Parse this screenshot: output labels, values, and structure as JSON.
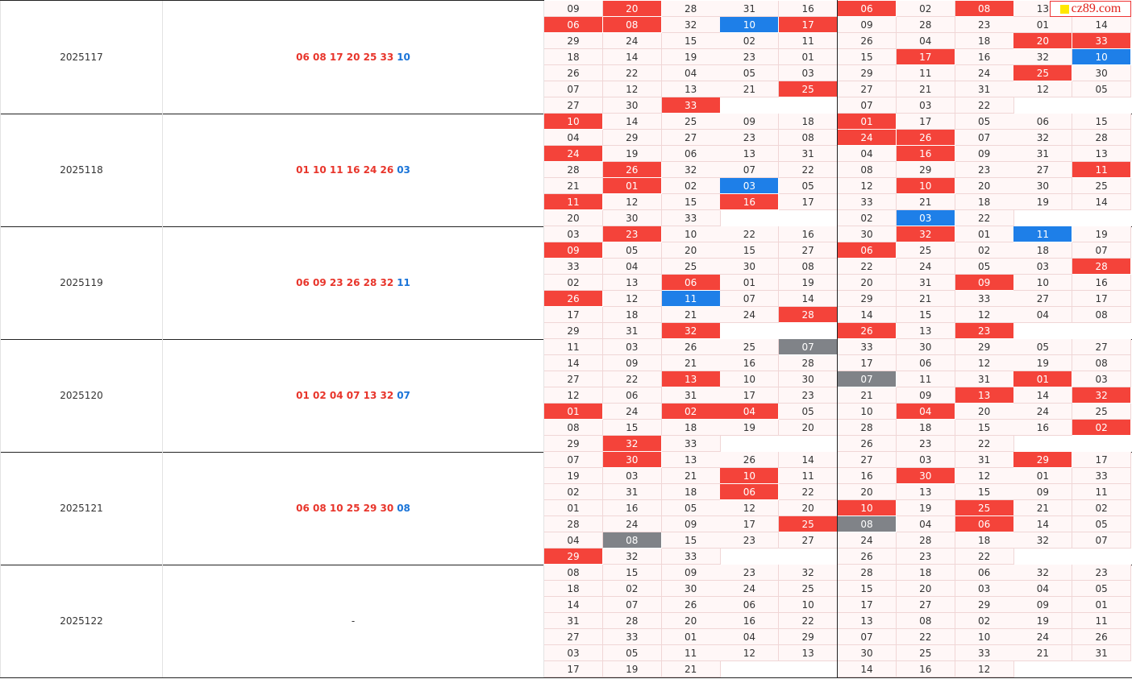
{
  "watermark": "cz89.com",
  "periods": [
    {
      "issue": "2025117",
      "reds": "06 08 17 20 25 33",
      "blue": "10",
      "left": [
        [
          "09",
          "20",
          "28",
          "31",
          "16"
        ],
        [
          "06",
          "08",
          "32",
          "10",
          "17"
        ],
        [
          "29",
          "24",
          "15",
          "02",
          "11"
        ],
        [
          "18",
          "14",
          "19",
          "23",
          "01"
        ],
        [
          "26",
          "22",
          "04",
          "05",
          "03"
        ],
        [
          "07",
          "12",
          "13",
          "21",
          "25"
        ],
        [
          "27",
          "30",
          "33"
        ]
      ],
      "left_marks": [
        "nrnnn",
        "rrnbr",
        "nnnnn",
        "nnnnn",
        "nnnnn",
        "nnnnr",
        "nnr"
      ],
      "right": [
        [
          "06",
          "02",
          "08",
          "13"
        ],
        [
          "09",
          "28",
          "23",
          "01",
          "14"
        ],
        [
          "26",
          "04",
          "18",
          "20",
          "33"
        ],
        [
          "15",
          "17",
          "16",
          "32",
          "10"
        ],
        [
          "29",
          "11",
          "24",
          "25",
          "30"
        ],
        [
          "27",
          "21",
          "31",
          "12",
          "05"
        ],
        [
          "07",
          "03",
          "22"
        ]
      ],
      "right_marks": [
        "rnrn",
        "nnnnn",
        "nnnrr",
        "nrnnb",
        "nnnrn",
        "nnnnn",
        "nnn"
      ]
    },
    {
      "issue": "2025118",
      "reds": "01 10 11 16 24 26",
      "blue": "03",
      "left": [
        [
          "10",
          "14",
          "25",
          "09",
          "18"
        ],
        [
          "04",
          "29",
          "27",
          "23",
          "08"
        ],
        [
          "24",
          "19",
          "06",
          "13",
          "31"
        ],
        [
          "28",
          "26",
          "32",
          "07",
          "22"
        ],
        [
          "21",
          "01",
          "02",
          "03",
          "05"
        ],
        [
          "11",
          "12",
          "15",
          "16",
          "17"
        ],
        [
          "20",
          "30",
          "33"
        ]
      ],
      "left_marks": [
        "rnnnn",
        "nnnnn",
        "rnnnn",
        "nrnnn",
        "nrnbn",
        "rnnrn",
        "nnn"
      ],
      "right": [
        [
          "01",
          "17",
          "05",
          "06",
          "15"
        ],
        [
          "24",
          "26",
          "07",
          "32",
          "28"
        ],
        [
          "04",
          "16",
          "09",
          "31",
          "13"
        ],
        [
          "08",
          "29",
          "23",
          "27",
          "11"
        ],
        [
          "12",
          "10",
          "20",
          "30",
          "25"
        ],
        [
          "33",
          "21",
          "18",
          "19",
          "14"
        ],
        [
          "02",
          "03",
          "22"
        ]
      ],
      "right_marks": [
        "rnnnn",
        "rrnnn",
        "nrnnn",
        "nnnnr",
        "nrnnn",
        "nnnnn",
        "nbn"
      ]
    },
    {
      "issue": "2025119",
      "reds": "06 09 23 26 28 32",
      "blue": "11",
      "left": [
        [
          "03",
          "23",
          "10",
          "22",
          "16"
        ],
        [
          "09",
          "05",
          "20",
          "15",
          "27"
        ],
        [
          "33",
          "04",
          "25",
          "30",
          "08"
        ],
        [
          "02",
          "13",
          "06",
          "01",
          "19"
        ],
        [
          "26",
          "12",
          "11",
          "07",
          "14"
        ],
        [
          "17",
          "18",
          "21",
          "24",
          "28"
        ],
        [
          "29",
          "31",
          "32"
        ]
      ],
      "left_marks": [
        "nrnnn",
        "rnnnn",
        "nnnnn",
        "nnrnn",
        "rnbnn",
        "nnnnr",
        "nnr"
      ],
      "right": [
        [
          "30",
          "32",
          "01",
          "11",
          "19"
        ],
        [
          "06",
          "25",
          "02",
          "18",
          "07"
        ],
        [
          "22",
          "24",
          "05",
          "03",
          "28"
        ],
        [
          "20",
          "31",
          "09",
          "10",
          "16"
        ],
        [
          "29",
          "21",
          "33",
          "27",
          "17"
        ],
        [
          "14",
          "15",
          "12",
          "04",
          "08"
        ],
        [
          "26",
          "13",
          "23"
        ]
      ],
      "right_marks": [
        "nrnbn",
        "rnnnn",
        "nnnnr",
        "nnrnn",
        "nnnnn",
        "nnnnn",
        "rnr"
      ]
    },
    {
      "issue": "2025120",
      "reds": "01 02 04 07 13 32",
      "blue": "07",
      "left": [
        [
          "11",
          "03",
          "26",
          "25",
          "07"
        ],
        [
          "14",
          "09",
          "21",
          "16",
          "28"
        ],
        [
          "27",
          "22",
          "13",
          "10",
          "30"
        ],
        [
          "12",
          "06",
          "31",
          "17",
          "23"
        ],
        [
          "01",
          "24",
          "02",
          "04",
          "05"
        ],
        [
          "08",
          "15",
          "18",
          "19",
          "20"
        ],
        [
          "29",
          "32",
          "33"
        ]
      ],
      "left_marks": [
        "nnnng",
        "nnnnn",
        "nnrnn",
        "nnnnn",
        "rnrrn",
        "nnnnn",
        "nrn"
      ],
      "right": [
        [
          "33",
          "30",
          "29",
          "05",
          "27"
        ],
        [
          "17",
          "06",
          "12",
          "19",
          "08"
        ],
        [
          "07",
          "11",
          "31",
          "01",
          "03"
        ],
        [
          "21",
          "09",
          "13",
          "14",
          "32"
        ],
        [
          "10",
          "04",
          "20",
          "24",
          "25"
        ],
        [
          "28",
          "18",
          "15",
          "16",
          "02"
        ],
        [
          "26",
          "23",
          "22"
        ]
      ],
      "right_marks": [
        "nnnnn",
        "nnnnn",
        "gnnrn",
        "nnrnr",
        "nrnnn",
        "nnnnr",
        "nnn"
      ]
    },
    {
      "issue": "2025121",
      "reds": "06 08 10 25 29 30",
      "blue": "08",
      "left": [
        [
          "07",
          "30",
          "13",
          "26",
          "14"
        ],
        [
          "19",
          "03",
          "21",
          "10",
          "11"
        ],
        [
          "02",
          "31",
          "18",
          "06",
          "22"
        ],
        [
          "01",
          "16",
          "05",
          "12",
          "20"
        ],
        [
          "28",
          "24",
          "09",
          "17",
          "25"
        ],
        [
          "04",
          "08",
          "15",
          "23",
          "27"
        ],
        [
          "29",
          "32",
          "33"
        ]
      ],
      "left_marks": [
        "nrnnn",
        "nnnrn",
        "nnnrn",
        "nnnnn",
        "nnnnr",
        "ngnnn",
        "rnn"
      ],
      "right": [
        [
          "27",
          "03",
          "31",
          "29",
          "17"
        ],
        [
          "16",
          "30",
          "12",
          "01",
          "33"
        ],
        [
          "20",
          "13",
          "15",
          "09",
          "11"
        ],
        [
          "10",
          "19",
          "25",
          "21",
          "02"
        ],
        [
          "08",
          "04",
          "06",
          "14",
          "05"
        ],
        [
          "24",
          "28",
          "18",
          "32",
          "07"
        ],
        [
          "26",
          "23",
          "22"
        ]
      ],
      "right_marks": [
        "nnnrn",
        "nrnnn",
        "nnnnn",
        "rnrnn",
        "gnrnn",
        "nnnnn",
        "nnn"
      ]
    },
    {
      "issue": "2025122",
      "reds": "-",
      "left": [
        [
          "08",
          "15",
          "09",
          "23",
          "32"
        ],
        [
          "18",
          "02",
          "30",
          "24",
          "25"
        ],
        [
          "14",
          "07",
          "26",
          "06",
          "10"
        ],
        [
          "31",
          "28",
          "20",
          "16",
          "22"
        ],
        [
          "27",
          "33",
          "01",
          "04",
          "29"
        ],
        [
          "03",
          "05",
          "11",
          "12",
          "13"
        ],
        [
          "17",
          "19",
          "21"
        ]
      ],
      "left_marks": [
        "nnnnn",
        "nnnnn",
        "nnnnn",
        "nnnnn",
        "nnnnn",
        "nnnnn",
        "nnn"
      ],
      "right": [
        [
          "28",
          "18",
          "06",
          "32",
          "23"
        ],
        [
          "15",
          "20",
          "03",
          "04",
          "05"
        ],
        [
          "17",
          "27",
          "29",
          "09",
          "01"
        ],
        [
          "13",
          "08",
          "02",
          "19",
          "11"
        ],
        [
          "07",
          "22",
          "10",
          "24",
          "26"
        ],
        [
          "30",
          "25",
          "33",
          "21",
          "31"
        ],
        [
          "14",
          "16",
          "12"
        ]
      ],
      "right_marks": [
        "nnnnn",
        "nnnnn",
        "nnnnn",
        "nnnnn",
        "nnnnn",
        "nnnnn",
        "nnn"
      ]
    }
  ]
}
